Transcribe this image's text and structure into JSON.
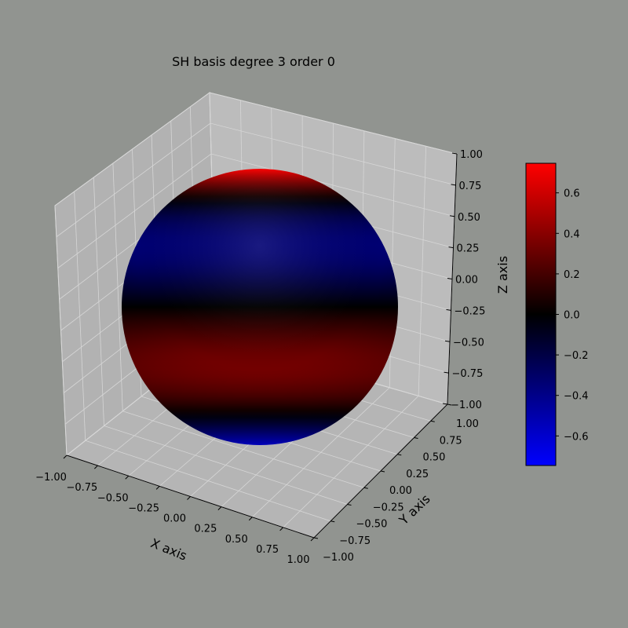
{
  "chart_data": {
    "type": "surface3d",
    "title": "SH basis degree 3 order 0",
    "xlabel": "X axis",
    "ylabel": "Y axis",
    "zlabel": "Z axis",
    "xlim": [
      -1.0,
      1.0
    ],
    "ylim": [
      -1.0,
      1.0
    ],
    "zlim": [
      -1.0,
      1.0
    ],
    "x_ticks": [
      "−1.00",
      "−0.75",
      "−0.50",
      "−0.25",
      "0.00",
      "0.25",
      "0.50",
      "0.75",
      "1.00"
    ],
    "y_ticks": [
      "−1.00",
      "−0.75",
      "−0.50",
      "−0.25",
      "0.00",
      "0.25",
      "0.50",
      "0.75",
      "1.00"
    ],
    "z_ticks": [
      "−1.00",
      "−0.75",
      "−0.50",
      "−0.25",
      "0.00",
      "0.25",
      "0.50",
      "0.75",
      "1.00"
    ],
    "grid": true,
    "surface": "unit sphere colored by spherical harmonic Y(l=3, m=0)",
    "colormap": {
      "low": "#0000ff",
      "mid": "#000000",
      "high": "#ff0000"
    },
    "colorbar": {
      "vmin": -0.746,
      "vmax": 0.746,
      "ticks": [
        -0.6,
        -0.4,
        -0.2,
        0.0,
        0.2,
        0.4,
        0.6
      ],
      "tick_labels": [
        "−0.6",
        "−0.4",
        "−0.2",
        "0.0",
        "0.2",
        "0.4",
        "0.6"
      ],
      "placement": "right"
    }
  }
}
